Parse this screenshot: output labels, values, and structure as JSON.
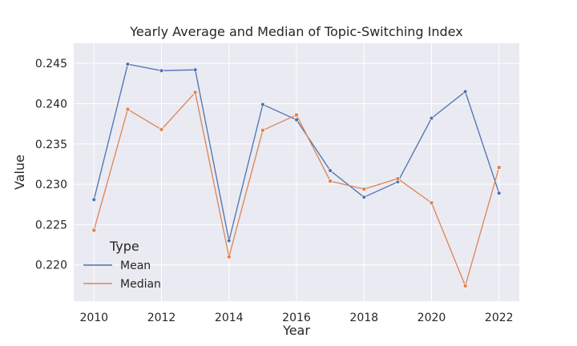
{
  "chart_data": {
    "type": "line",
    "title": "Yearly Average and Median of Topic-Switching Index",
    "xlabel": "Year",
    "ylabel": "Value",
    "x": [
      2010,
      2011,
      2012,
      2013,
      2014,
      2015,
      2016,
      2017,
      2018,
      2019,
      2020,
      2021,
      2022
    ],
    "xlim": [
      2009.4,
      2022.6
    ],
    "ylim": [
      0.2155,
      0.2475
    ],
    "xticks": [
      2010,
      2012,
      2014,
      2016,
      2018,
      2020,
      2022
    ],
    "yticks": [
      0.22,
      0.225,
      0.23,
      0.235,
      0.24,
      0.245
    ],
    "ytick_labels": [
      "0.220",
      "0.225",
      "0.230",
      "0.235",
      "0.240",
      "0.245"
    ],
    "grid": true,
    "legend": {
      "title": "Type",
      "placement": "lower-left"
    },
    "series": [
      {
        "name": "Mean",
        "color": "#4c72b0",
        "values": [
          0.2281,
          0.2449,
          0.2441,
          0.2442,
          0.223,
          0.2399,
          0.238,
          0.2317,
          0.2284,
          0.2303,
          0.2382,
          0.2415,
          0.2289
        ]
      },
      {
        "name": "Median",
        "color": "#dd8452",
        "values": [
          0.2243,
          0.2393,
          0.2368,
          0.2414,
          0.221,
          0.2367,
          0.2386,
          0.2304,
          0.2294,
          0.2307,
          0.2277,
          0.2174,
          0.2321
        ]
      }
    ]
  },
  "colors": {
    "plot_background": "#eaeaf2",
    "grid": "#ffffff",
    "text": "#262626"
  }
}
